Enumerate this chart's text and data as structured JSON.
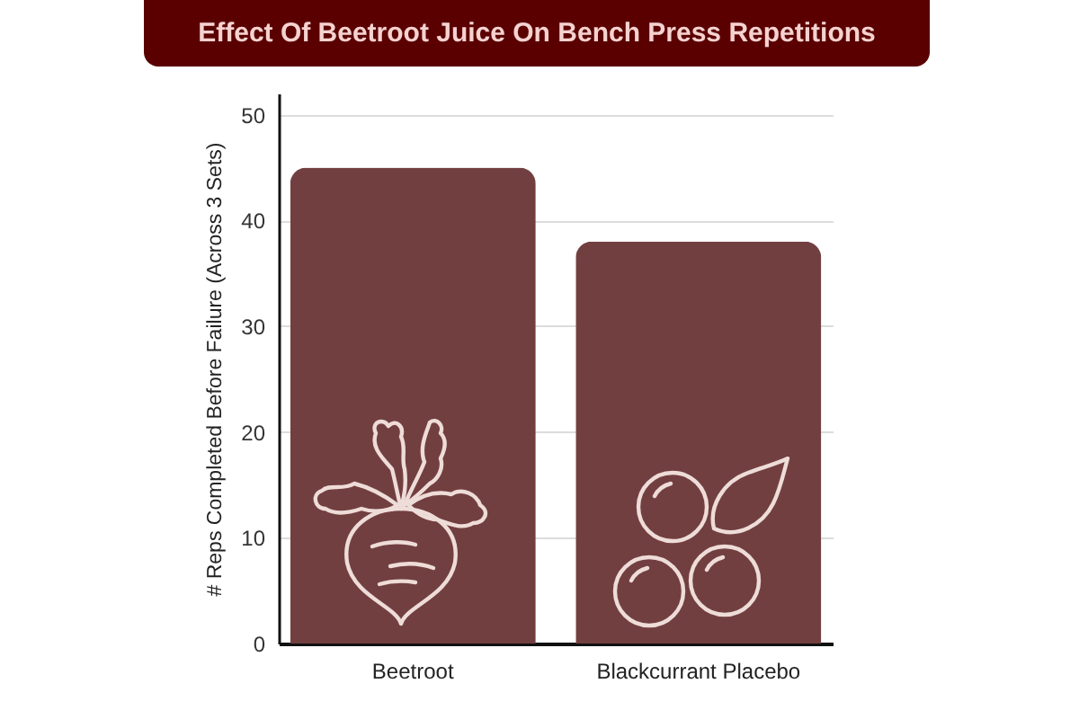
{
  "chart_data": {
    "type": "bar",
    "title": "Effect Of Beetroot Juice On Bench Press Repetitions",
    "ylabel": "# Reps Completed Before Failure (Across 3 Sets)",
    "categories": [
      "Beetroot",
      "Blackcurrant Placebo"
    ],
    "values": [
      45,
      38
    ],
    "color": "#723f40",
    "ylim": [
      0,
      52
    ],
    "yticks": [
      0,
      10,
      20,
      30,
      40,
      50
    ],
    "grid": "y"
  }
}
